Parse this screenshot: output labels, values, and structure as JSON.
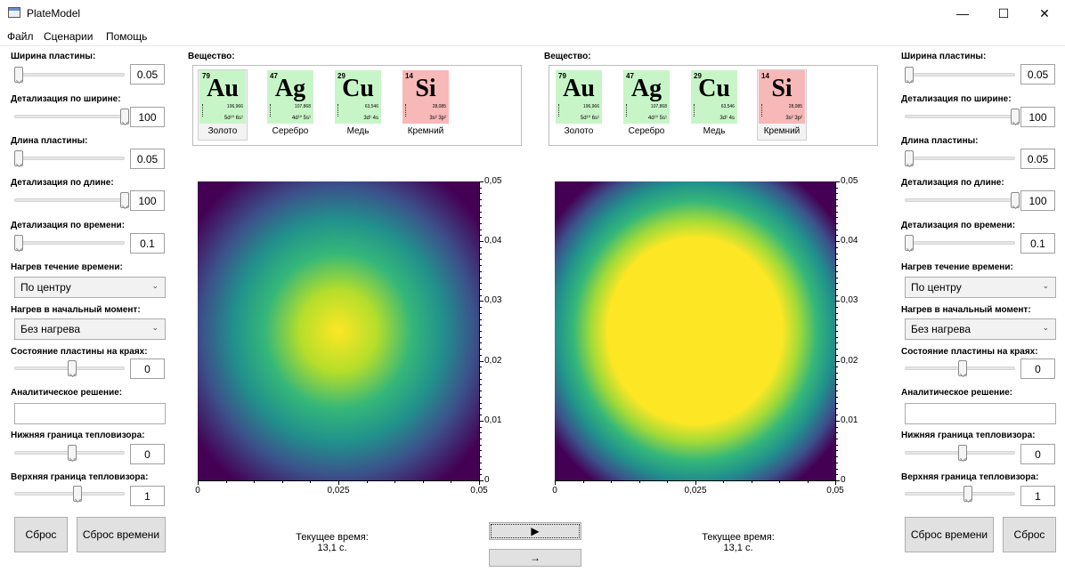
{
  "window": {
    "title": "PlateModel"
  },
  "menu": [
    "Файл",
    "Сценарии",
    "Помощь"
  ],
  "params": {
    "plate_width": "Ширина пластины:",
    "width_detail": "Детализация по ширине:",
    "plate_length": "Длина пластины:",
    "length_detail": "Детализация по длине:",
    "time_detail": "Детализация по времени:",
    "heat_over_time": "Нагрев течение времени:",
    "heat_initial": "Нагрев в начальный момент:",
    "edge_state": "Состояние пластины на краях:",
    "analytic": "Аналитическое решение:",
    "thermo_low": "Нижняя граница тепловизора:",
    "thermo_high": "Верхняя граница тепловизора:"
  },
  "left": {
    "plate_width": "0.05",
    "width_detail": "100",
    "plate_length": "0.05",
    "length_detail": "100",
    "time_detail": "0.1",
    "heat_over_time": "По центру",
    "heat_initial": "Без нагрева",
    "edge_state": "0",
    "thermo_low": "0",
    "thermo_high": "1",
    "reset_btn": "Сброс",
    "reset_time_btn": "Сброс времени"
  },
  "right": {
    "plate_width": "0.05",
    "width_detail": "100",
    "plate_length": "0.05",
    "length_detail": "100",
    "time_detail": "0.1",
    "heat_over_time": "По центру",
    "heat_initial": "Без нагрева",
    "edge_state": "0",
    "thermo_low": "0",
    "thermo_high": "1",
    "reset_btn": "Сброс",
    "reset_time_btn": "Сброс времени"
  },
  "substance_label": "Вещество:",
  "elements": [
    {
      "z": "79",
      "symbol": "Au",
      "mass": "196,966",
      "config": "5d¹⁰ 6s¹",
      "name": "Золото",
      "color": "#c8f5c8"
    },
    {
      "z": "47",
      "symbol": "Ag",
      "mass": "107,868",
      "config": "4d¹⁰ 5s¹",
      "name": "Серебро",
      "color": "#c8f5c8"
    },
    {
      "z": "29",
      "symbol": "Cu",
      "mass": "63,546",
      "config": "3d¹ 4s",
      "name": "Медь",
      "color": "#c8f5c8"
    },
    {
      "z": "14",
      "symbol": "Si",
      "mass": "28,085",
      "config": "3s² 3p²",
      "name": "Кремний",
      "color": "#f7b8b8"
    }
  ],
  "left_selected": "Au",
  "right_selected": "Si",
  "axes": {
    "x_ticks": [
      "0",
      "0,025",
      "0,05"
    ],
    "y_ticks": [
      "0,05",
      "0,04",
      "0,03",
      "0,02",
      "0,01",
      "0"
    ]
  },
  "time": {
    "label": "Текущее время:",
    "value": "13,1 с."
  },
  "controls": {
    "play": "▶",
    "step": "→"
  }
}
